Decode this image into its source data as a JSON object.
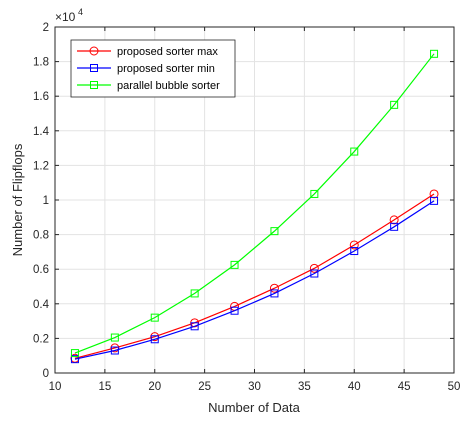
{
  "chart_data": {
    "type": "line",
    "title": "",
    "xlabel": "Number of Data",
    "ylabel": "Number of Flipflops",
    "xlim": [
      10,
      50
    ],
    "ylim": [
      0,
      20000
    ],
    "xticks": [
      10,
      15,
      20,
      25,
      30,
      35,
      40,
      45,
      50
    ],
    "yticks": [
      0,
      2000,
      4000,
      6000,
      8000,
      10000,
      12000,
      14000,
      16000,
      18000,
      20000
    ],
    "ytick_labels": [
      "0",
      "0.2",
      "0.4",
      "0.6",
      "0.8",
      "1",
      "1.2",
      "1.4",
      "1.6",
      "1.8",
      "2"
    ],
    "y_exponent": {
      "base": "×10",
      "power": "4"
    },
    "grid": true,
    "legend_position": "top-left",
    "x": [
      12,
      16,
      20,
      24,
      28,
      32,
      36,
      40,
      44,
      48
    ],
    "series": [
      {
        "name": "proposed sorter max",
        "color": "#ff0000",
        "marker": "circle",
        "values": [
          850,
          1450,
          2100,
          2900,
          3850,
          4900,
          6050,
          7400,
          8850,
          10350
        ]
      },
      {
        "name": "proposed sorter min",
        "color": "#0000ff",
        "marker": "square",
        "values": [
          800,
          1300,
          1950,
          2700,
          3600,
          4600,
          5750,
          7050,
          8450,
          9950
        ]
      },
      {
        "name": "parallel bubble sorter",
        "color": "#00ff00",
        "marker": "square",
        "values": [
          1150,
          2050,
          3200,
          4600,
          6250,
          8200,
          10350,
          12800,
          15500,
          18450
        ]
      }
    ]
  }
}
